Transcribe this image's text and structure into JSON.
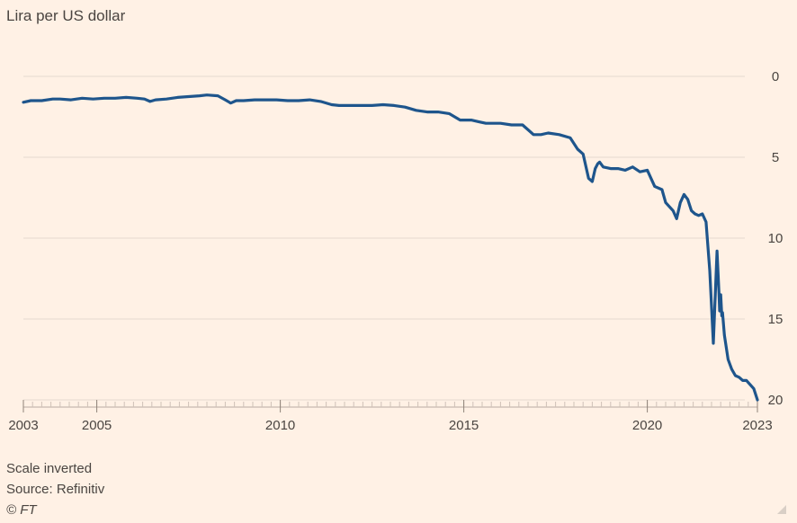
{
  "chart_data": {
    "type": "line",
    "subtitle": "Lira per US dollar",
    "y_axis": {
      "inverted": true,
      "range": [
        0,
        20
      ],
      "ticks": [
        0,
        5,
        10,
        15,
        20
      ],
      "position": "right"
    },
    "x_axis": {
      "range": [
        2003,
        2023
      ],
      "ticks": [
        2003,
        2005,
        2010,
        2015,
        2020,
        2023
      ]
    },
    "grid": true,
    "series": [
      {
        "color": "#1E558C",
        "x": [
          2003.0,
          2003.2,
          2003.5,
          2003.8,
          2004.0,
          2004.3,
          2004.6,
          2004.9,
          2005.2,
          2005.5,
          2005.8,
          2006.1,
          2006.3,
          2006.45,
          2006.6,
          2006.9,
          2007.2,
          2007.5,
          2007.8,
          2008.0,
          2008.3,
          2008.5,
          2008.65,
          2008.8,
          2009.0,
          2009.3,
          2009.6,
          2009.9,
          2010.2,
          2010.5,
          2010.8,
          2011.1,
          2011.4,
          2011.6,
          2011.9,
          2012.2,
          2012.5,
          2012.8,
          2013.1,
          2013.4,
          2013.7,
          2014.0,
          2014.3,
          2014.6,
          2014.9,
          2015.2,
          2015.4,
          2015.6,
          2015.8,
          2016.0,
          2016.3,
          2016.6,
          2016.9,
          2017.1,
          2017.3,
          2017.6,
          2017.9,
          2018.1,
          2018.25,
          2018.4,
          2018.5,
          2018.58,
          2018.65,
          2018.7,
          2018.8,
          2019.0,
          2019.2,
          2019.4,
          2019.6,
          2019.8,
          2020.0,
          2020.2,
          2020.4,
          2020.5,
          2020.7,
          2020.8,
          2020.9,
          2021.0,
          2021.1,
          2021.2,
          2021.3,
          2021.4,
          2021.5,
          2021.6,
          2021.7,
          2021.8,
          2021.9,
          2021.95,
          2021.97,
          2022.0,
          2022.03,
          2022.05,
          2022.1,
          2022.2,
          2022.3,
          2022.4,
          2022.5,
          2022.6,
          2022.7,
          2022.9,
          2023.0
        ],
        "y": [
          1.6,
          1.5,
          1.5,
          1.4,
          1.4,
          1.45,
          1.35,
          1.4,
          1.35,
          1.35,
          1.3,
          1.35,
          1.4,
          1.55,
          1.45,
          1.4,
          1.3,
          1.25,
          1.2,
          1.15,
          1.2,
          1.45,
          1.65,
          1.5,
          1.5,
          1.45,
          1.45,
          1.45,
          1.5,
          1.5,
          1.45,
          1.55,
          1.75,
          1.8,
          1.8,
          1.8,
          1.8,
          1.75,
          1.8,
          1.9,
          2.1,
          2.2,
          2.2,
          2.3,
          2.7,
          2.7,
          2.8,
          2.9,
          2.9,
          2.9,
          3.0,
          3.0,
          3.6,
          3.6,
          3.5,
          3.6,
          3.8,
          4.5,
          4.8,
          6.3,
          6.5,
          5.7,
          5.4,
          5.3,
          5.6,
          5.7,
          5.7,
          5.8,
          5.6,
          5.9,
          5.8,
          6.8,
          7.0,
          7.8,
          8.3,
          8.8,
          7.8,
          7.3,
          7.6,
          8.3,
          8.5,
          8.6,
          8.5,
          9.0,
          12.0,
          16.5,
          10.8,
          13.3,
          14.5,
          13.5,
          14.8,
          14.6,
          16.0,
          17.5,
          18.1,
          18.5,
          18.6,
          18.8,
          18.8,
          19.3,
          20.0
        ]
      }
    ],
    "notes": [
      "Scale inverted",
      "Source: Refinitiv",
      "© FT"
    ]
  }
}
